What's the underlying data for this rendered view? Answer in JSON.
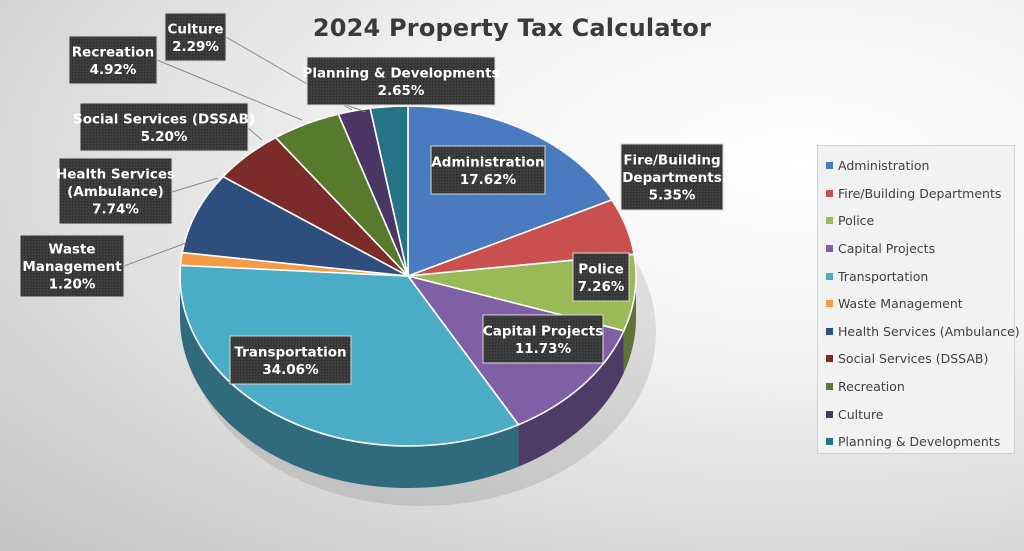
{
  "colors": {
    "Administration": "#4a7bc0",
    "Fire/Building Departments": "#c9504f",
    "Police": "#9aba58",
    "Capital Projects": "#8060a4",
    "Transportation": "#4bacc6",
    "Waste Management": "#f59a45",
    "Health Services (Ambulance)": "#2e4e7e",
    "Social Services (DSSAB)": "#7a2b2a",
    "Recreation": "#587a2d",
    "Culture": "#4a3563",
    "Planning & Developments": "#257384"
  },
  "chart_data": {
    "type": "pie",
    "title": "2024 Property Tax Calculator",
    "categories": [
      "Administration",
      "Fire/Building Departments",
      "Police",
      "Capital Projects",
      "Transportation",
      "Waste Management",
      "Health Services (Ambulance)",
      "Social Services (DSSAB)",
      "Recreation",
      "Culture",
      "Planning & Developments"
    ],
    "values": [
      17.62,
      5.35,
      7.26,
      11.73,
      34.06,
      1.2,
      7.74,
      5.2,
      4.92,
      2.29,
      2.65
    ],
    "data_labels": [
      {
        "lines": [
          "Administration",
          "17.62%"
        ]
      },
      {
        "lines": [
          "Fire/Building",
          "Departments",
          "5.35%"
        ]
      },
      {
        "lines": [
          "Police",
          "7.26%"
        ]
      },
      {
        "lines": [
          "Capital Projects",
          "11.73%"
        ]
      },
      {
        "lines": [
          "Transportation",
          "34.06%"
        ]
      },
      {
        "lines": [
          "Waste",
          "Management",
          "1.20%"
        ]
      },
      {
        "lines": [
          "Health Services",
          "(Ambulance)",
          "7.74%"
        ]
      },
      {
        "lines": [
          "Social Services (DSSAB)",
          "5.20%"
        ]
      },
      {
        "lines": [
          "Recreation",
          "4.92%"
        ]
      },
      {
        "lines": [
          "Culture",
          "2.29%"
        ]
      },
      {
        "lines": [
          "Planning & Developments",
          "2.65%"
        ]
      }
    ],
    "legend_position": "right",
    "style": "3d"
  }
}
